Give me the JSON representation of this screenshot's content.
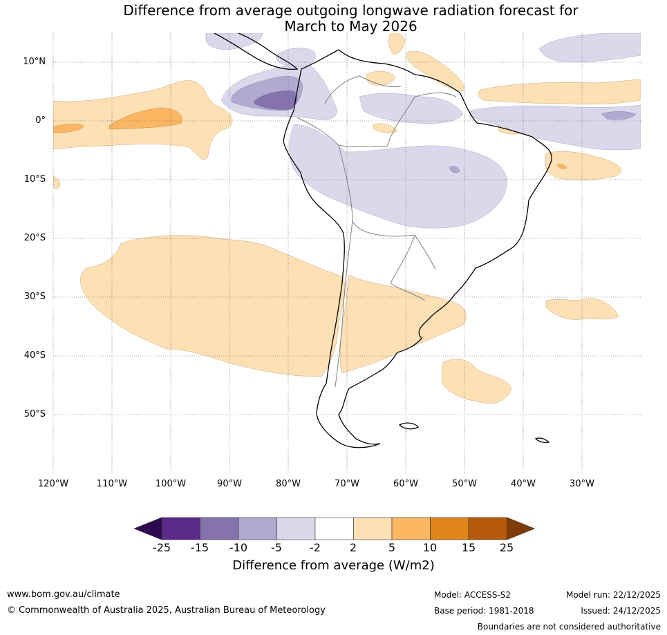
{
  "title": {
    "line1": "Difference from average outgoing longwave radiation forecast for",
    "line2": "March to May 2026"
  },
  "map": {
    "lat_labels": [
      "10°N",
      "0°",
      "10°S",
      "20°S",
      "30°S",
      "40°S",
      "50°S"
    ],
    "lon_labels": [
      "120°W",
      "110°W",
      "100°W",
      "90°W",
      "80°W",
      "70°W",
      "60°W",
      "50°W",
      "40°W",
      "30°W"
    ],
    "lat_values": [
      10,
      0,
      -10,
      -20,
      -30,
      -40,
      -50
    ],
    "lon_values": [
      -120,
      -110,
      -100,
      -90,
      -80,
      -70,
      -60,
      -50,
      -40,
      -30
    ],
    "extent": {
      "lon_min": -120,
      "lon_max": -20,
      "lat_min": -60,
      "lat_max": 15
    }
  },
  "colorbar": {
    "ticks": [
      "-25",
      "-15",
      "-10",
      "-5",
      "-2",
      "2",
      "5",
      "10",
      "15",
      "25"
    ],
    "colors": [
      "#5b2a8b",
      "#8473ad",
      "#b1a9d0",
      "#d9d9eb",
      "#ffffff",
      "#fde0b4",
      "#fbb662",
      "#e0861b",
      "#b45a0a"
    ],
    "under_color": "#2d0a4e",
    "over_color": "#7f3b08",
    "label": "Difference from average (W/m2)"
  },
  "footer": {
    "website": "www.bom.gov.au/climate",
    "copyright": "© Commonwealth of Australia 2025, Australian Bureau of Meteorology",
    "model": "Model: ACCESS-S2",
    "model_run": "Model run: 22/12/2025",
    "base_period": "Base period: 1981-2018",
    "issued": "Issued: 24/12/2025",
    "boundaries": "Boundaries are not considered authoritative"
  }
}
